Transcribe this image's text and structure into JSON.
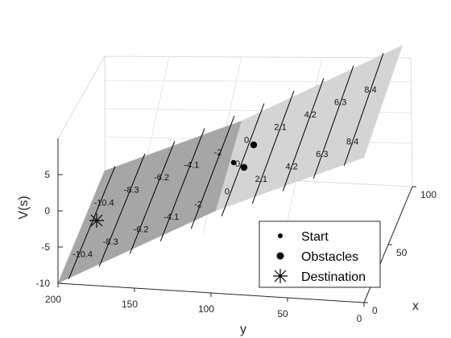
{
  "chart_data": {
    "type": "surface",
    "zlabel": "V(s)",
    "xlabel": "x",
    "ylabel": "y",
    "xlim": [
      0,
      100
    ],
    "ylim": [
      0,
      200
    ],
    "zlim": [
      -10,
      10
    ],
    "x_ticks": [
      0,
      50,
      100
    ],
    "y_ticks": [
      0,
      50,
      100,
      150,
      200
    ],
    "z_ticks": [
      -10,
      -5,
      0,
      5
    ],
    "grid": true,
    "surface_color": "#bdbdbd",
    "contour_color": "#000000",
    "contour_labels_front": [
      "-10.4",
      "-8.3",
      "-6.2",
      "-4.1",
      "-2",
      "0",
      "2.1",
      "4.2",
      "6.3",
      "8.4"
    ],
    "contour_labels_back": [
      "-10.4",
      "-8.3",
      "-6.2",
      "-4.1",
      "-2",
      "0",
      "2.1",
      "4.2",
      "6.3",
      "8.4"
    ],
    "points": {
      "start": {
        "label": "0"
      },
      "obstacle_count": 2
    },
    "legend": {
      "placement": "bottom-right",
      "entries": [
        {
          "label": "Start",
          "marker": "small-dot"
        },
        {
          "label": "Obstacles",
          "marker": "large-dot"
        },
        {
          "label": "Destination",
          "marker": "asterisk"
        }
      ]
    }
  }
}
